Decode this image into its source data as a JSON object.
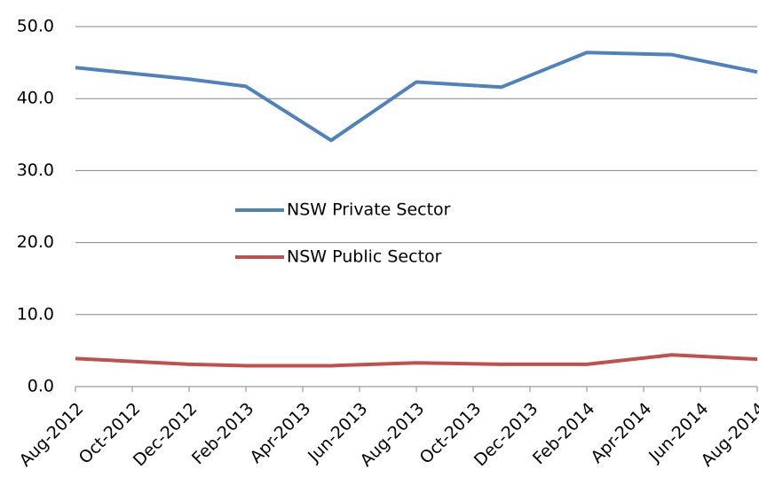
{
  "chart_data": {
    "type": "line",
    "x": [
      "Aug-2012",
      "Dec-2012",
      "Feb-2013",
      "May-2013",
      "Aug-2013",
      "Nov-2013",
      "Feb-2014",
      "May-2014",
      "Aug-2014"
    ],
    "series": [
      {
        "name": "NSW Private Sector",
        "color": "#4f81bd",
        "values": [
          44.3,
          42.7,
          41.7,
          34.2,
          42.3,
          41.6,
          46.4,
          46.1,
          43.7
        ]
      },
      {
        "name": "NSW Public Sector",
        "color": "#c0504d",
        "values": [
          3.9,
          3.1,
          2.9,
          2.9,
          3.3,
          3.1,
          3.1,
          4.4,
          3.8
        ]
      }
    ],
    "xlim": [
      "Aug-2012",
      "Aug-2014"
    ],
    "xticks": [
      "Aug-2012",
      "Oct-2012",
      "Dec-2012",
      "Feb-2013",
      "Apr-2013",
      "Jun-2013",
      "Aug-2013",
      "Oct-2013",
      "Dec-2013",
      "Feb-2014",
      "Apr-2014",
      "Jun-2014",
      "Aug-2014"
    ],
    "ylim": [
      0,
      50
    ],
    "yticks": [
      {
        "value": 0,
        "label": "0.0"
      },
      {
        "value": 10,
        "label": "10.0"
      },
      {
        "value": 20,
        "label": "20.0"
      },
      {
        "value": 30,
        "label": "30.0"
      },
      {
        "value": 40,
        "label": "40.0"
      },
      {
        "value": 50,
        "label": "50.0"
      }
    ],
    "grid": true
  }
}
